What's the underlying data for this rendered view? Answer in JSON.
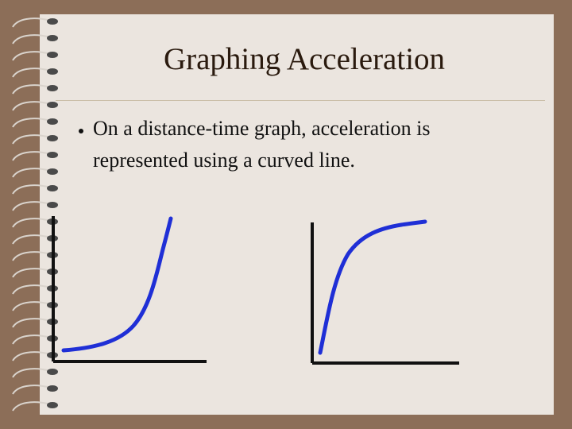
{
  "title": "Graphing Acceleration",
  "bullets": [
    "On a distance-time graph, acceleration is represented using a curved line."
  ]
}
